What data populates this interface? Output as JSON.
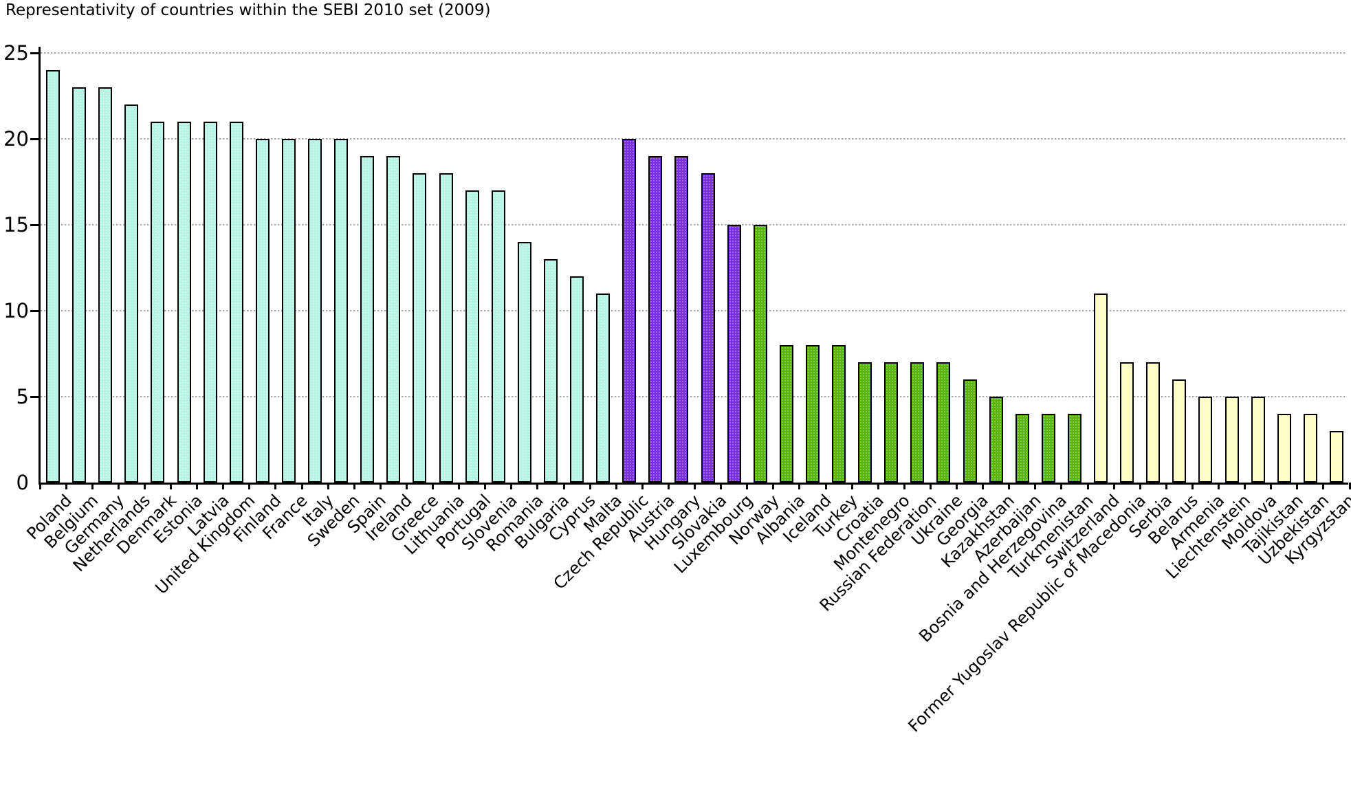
{
  "chart_data": {
    "type": "bar",
    "title": "Representativity of countries within the SEBI 2010 set (2009)",
    "xlabel": "",
    "ylabel": "",
    "ylim": [
      0,
      25
    ],
    "yticks": [
      0,
      5,
      10,
      15,
      20,
      25
    ],
    "grid": true,
    "legend": "none",
    "categories": [
      "Poland",
      "Belgium",
      "Germany",
      "Netherlands",
      "Denmark",
      "Estonia",
      "Latvia",
      "United Kingdom",
      "Finland",
      "France",
      "Italy",
      "Sweden",
      "Spain",
      "Ireland",
      "Greece",
      "Lithuania",
      "Portugal",
      "Slovenia",
      "Romania",
      "Bulgaria",
      "Cyprus",
      "Malta",
      "Czech Republic",
      "Austria",
      "Hungary",
      "Slovakia",
      "Luxembourg",
      "Norway",
      "Albania",
      "Iceland",
      "Turkey",
      "Croatia",
      "Montenegro",
      "Russian Federation",
      "Ukraine",
      "Georgia",
      "Kazakhstan",
      "Azerbaijan",
      "Bosnia and Herzegovina",
      "Turkmenistan",
      "Switzerland",
      "Former Yugoslav Republic of Macedonia",
      "Serbia",
      "Belarus",
      "Armenia",
      "Liechtenstein",
      "Moldova",
      "Tajikistan",
      "Uzbekistan",
      "Kyrgyzstan"
    ],
    "values": [
      24,
      23,
      23,
      22,
      21,
      21,
      21,
      21,
      20,
      20,
      20,
      20,
      19,
      19,
      18,
      18,
      17,
      17,
      14,
      13,
      12,
      11,
      20,
      19,
      19,
      18,
      15,
      15,
      8,
      8,
      8,
      7,
      7,
      7,
      7,
      6,
      5,
      4,
      4,
      4,
      11,
      7,
      7,
      6,
      5,
      5,
      5,
      4,
      4,
      3
    ],
    "bar_groups": [
      "cyan",
      "cyan",
      "cyan",
      "cyan",
      "cyan",
      "cyan",
      "cyan",
      "cyan",
      "cyan",
      "cyan",
      "cyan",
      "cyan",
      "cyan",
      "cyan",
      "cyan",
      "cyan",
      "cyan",
      "cyan",
      "cyan",
      "cyan",
      "cyan",
      "cyan",
      "purple",
      "purple",
      "purple",
      "purple",
      "purple",
      "green",
      "green",
      "green",
      "green",
      "green",
      "green",
      "green",
      "green",
      "green",
      "green",
      "green",
      "green",
      "green",
      "yellow",
      "yellow",
      "yellow",
      "yellow",
      "yellow",
      "yellow",
      "yellow",
      "yellow",
      "yellow",
      "yellow"
    ],
    "group_colors": {
      "cyan": "#b5f4e4",
      "purple": "#7a2fdc",
      "green": "#57b40c",
      "yellow": "#ffffc3"
    },
    "bar_border_color": "#000000",
    "gridline_color": "#a8a8a8"
  }
}
